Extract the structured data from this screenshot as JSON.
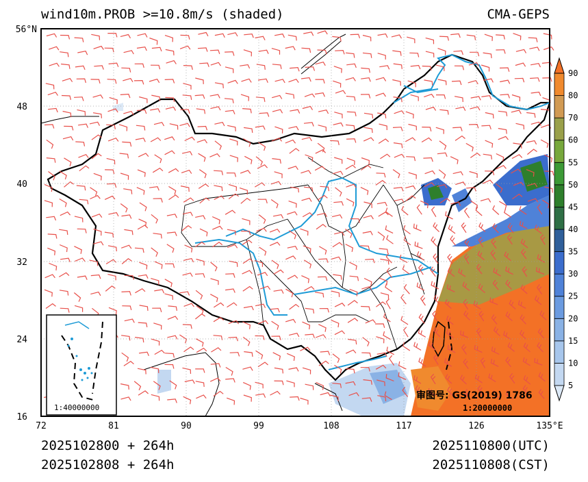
{
  "header": {
    "title": "wind10m.PROB >=10.8m/s (shaded)",
    "model": "CMA-GEPS"
  },
  "footer": {
    "init_line1": "2025102800 + 264h",
    "init_line2": "2025102808 + 264h",
    "valid_line1": "2025110800(UTC)",
    "valid_line2": "2025110808(CST)"
  },
  "map": {
    "lon_range": [
      72,
      135
    ],
    "lat_range": [
      16,
      56
    ],
    "lon_ticks": [
      "72",
      "81",
      "90",
      "99",
      "108",
      "117",
      "126",
      "135°E"
    ],
    "lat_ticks": [
      "56°N",
      "48",
      "40",
      "32",
      "24",
      "16"
    ],
    "approval_label": "审图号: GS(2019) 1786",
    "main_scale": "1:20000000",
    "inset_scale": "1:40000000",
    "colors": {
      "barb": "#e8504a",
      "river": "#1e9bd6",
      "border": "#000000"
    }
  },
  "colorbar": {
    "levels": [
      "5",
      "10",
      "15",
      "20",
      "25",
      "30",
      "35",
      "40",
      "45",
      "50",
      "55",
      "60",
      "70",
      "80",
      "90"
    ],
    "colors": [
      "#dce9f7",
      "#c3d8f1",
      "#a7c6ec",
      "#8ab2e5",
      "#6b9be0",
      "#4f82d8",
      "#3b6dcd",
      "#2f5f9a",
      "#2f6f45",
      "#2e7f2c",
      "#3c9a36",
      "#77a83c",
      "#9aa04a",
      "#d19a53",
      "#f08a2e",
      "#f37126"
    ]
  }
}
